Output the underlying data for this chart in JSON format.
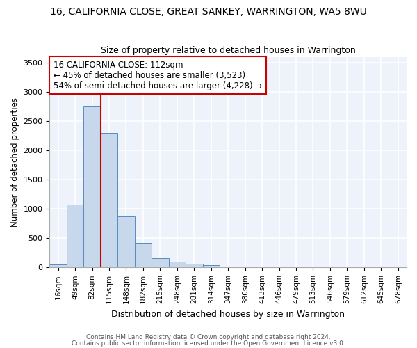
{
  "title": "16, CALIFORNIA CLOSE, GREAT SANKEY, WARRINGTON, WA5 8WU",
  "subtitle": "Size of property relative to detached houses in Warrington",
  "xlabel": "Distribution of detached houses by size in Warrington",
  "ylabel": "Number of detached properties",
  "categories": [
    "16sqm",
    "49sqm",
    "82sqm",
    "115sqm",
    "148sqm",
    "182sqm",
    "215sqm",
    "248sqm",
    "281sqm",
    "314sqm",
    "347sqm",
    "380sqm",
    "413sqm",
    "446sqm",
    "479sqm",
    "513sqm",
    "546sqm",
    "579sqm",
    "612sqm",
    "645sqm",
    "678sqm"
  ],
  "values": [
    50,
    1080,
    2750,
    2300,
    870,
    420,
    160,
    100,
    60,
    40,
    20,
    10,
    5,
    3,
    2,
    0,
    0,
    0,
    0,
    0,
    0
  ],
  "bar_color": "#c8d8ec",
  "bar_edge_color": "#5a8bbf",
  "vline_color": "#cc0000",
  "vline_x_index": 2.5,
  "annotation_text": "16 CALIFORNIA CLOSE: 112sqm\n← 45% of detached houses are smaller (3,523)\n54% of semi-detached houses are larger (4,228) →",
  "annotation_box_color": "white",
  "annotation_box_edge_color": "#cc0000",
  "ylim": [
    0,
    3600
  ],
  "yticks": [
    0,
    500,
    1000,
    1500,
    2000,
    2500,
    3000,
    3500
  ],
  "background_color": "#eef2fa",
  "grid_color": "white",
  "footer_line1": "Contains HM Land Registry data © Crown copyright and database right 2024.",
  "footer_line2": "Contains public sector information licensed under the Open Government Licence v3.0.",
  "title_fontsize": 10,
  "subtitle_fontsize": 9,
  "annotation_fontsize": 8.5
}
